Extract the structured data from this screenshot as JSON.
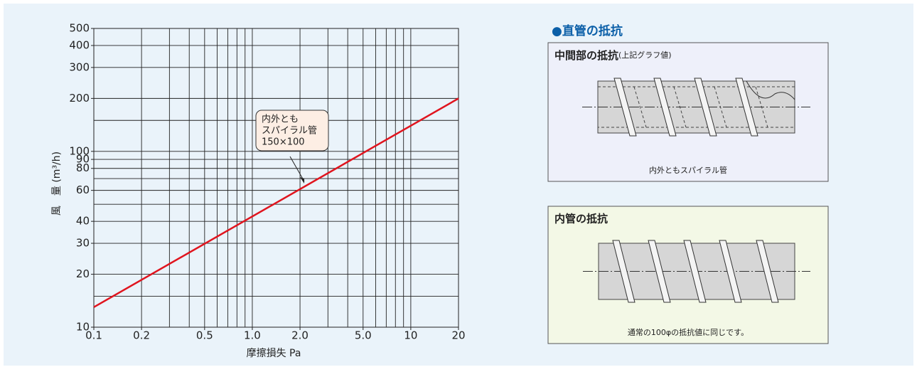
{
  "chart_data": {
    "type": "line",
    "log_x": true,
    "log_y": true,
    "grid": true,
    "x_label": "摩擦損失 Pa",
    "y_label": "風　量 (m³/h)",
    "xlim": [
      0.1,
      20
    ],
    "ylim": [
      10,
      500
    ],
    "xticks": [
      0.1,
      0.2,
      0.5,
      {
        "value": 1,
        "label": "1.0"
      },
      {
        "value": 2,
        "label": "2.0"
      },
      {
        "value": 5,
        "label": "5.0"
      },
      10,
      20
    ],
    "yticks": [
      10,
      20,
      30,
      40,
      60,
      80,
      90,
      100,
      200,
      300,
      400,
      500
    ],
    "xgrid": [
      0.1,
      0.2,
      0.3,
      0.4,
      0.5,
      0.6,
      0.7,
      0.8,
      0.9,
      1,
      2,
      3,
      4,
      5,
      6,
      7,
      8,
      9,
      10,
      20
    ],
    "ygrid": [
      10,
      15,
      20,
      30,
      40,
      50,
      60,
      70,
      80,
      90,
      100,
      150,
      200,
      300,
      400,
      500
    ],
    "x": [
      0.1,
      20
    ],
    "series": [
      {
        "color": "#e0141e",
        "values": [
          13,
          200
        ]
      }
    ],
    "annotation": [
      "内外とも",
      "スパイラル管",
      "150×100"
    ]
  },
  "diagrams": {
    "heading": "●直管の抵抗",
    "panels": [
      {
        "title": "中間部の抵抗",
        "note": "(上記グラフ値)",
        "caption": "内外ともスパイラル管"
      },
      {
        "title": "内管の抵抗",
        "caption": "通常の100φの抵抗値に同じです。"
      }
    ]
  }
}
